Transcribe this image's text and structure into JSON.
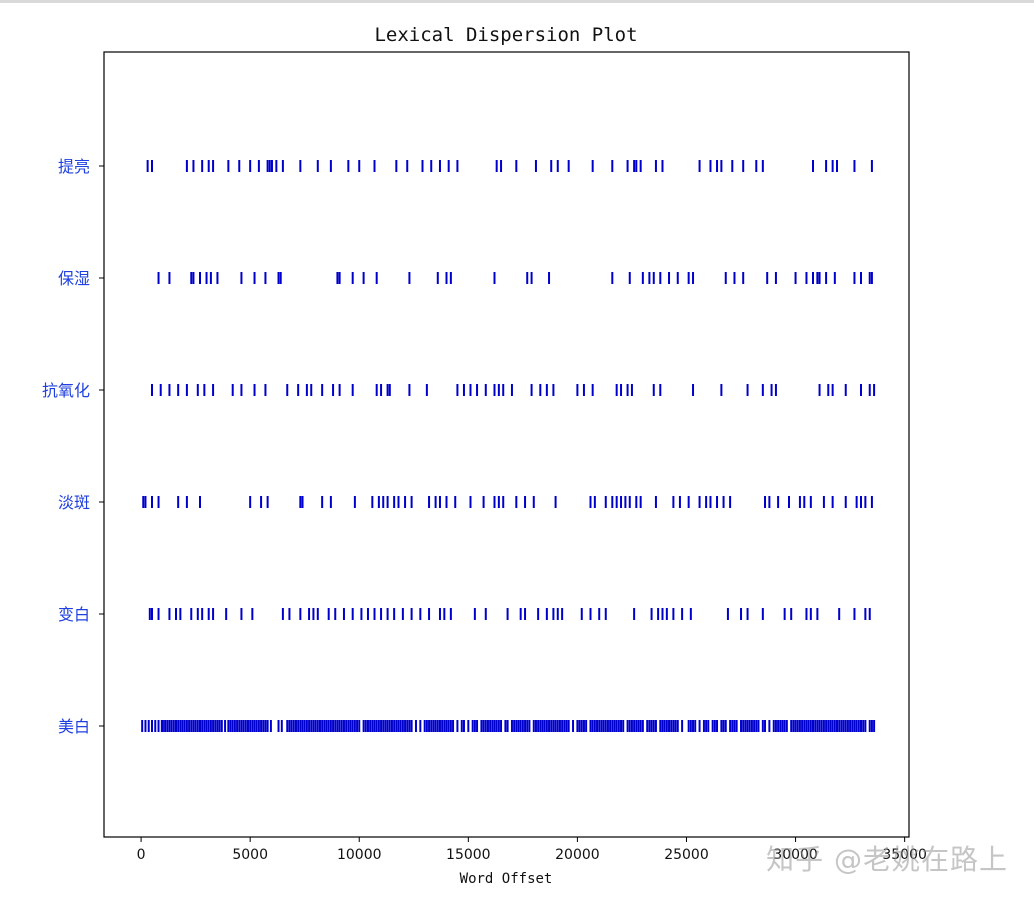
{
  "chart_data": {
    "type": "scatter",
    "title": "Lexical Dispersion Plot",
    "xlabel": "Word Offset",
    "ylabel": "",
    "xlim": [
      -1700,
      35200
    ],
    "xticks": [
      0,
      5000,
      10000,
      15000,
      20000,
      25000,
      30000,
      35000
    ],
    "xtick_labels": [
      "0",
      "5000",
      "10000",
      "15000",
      "20000",
      "25000",
      "30000",
      "35000"
    ],
    "marker": "|",
    "color": "#0000cc",
    "grid": false,
    "series": [
      {
        "name": "提亮",
        "x": [
          300,
          500,
          2100,
          2400,
          2800,
          3100,
          3300,
          4000,
          4500,
          5000,
          5400,
          5800,
          5900,
          6000,
          6200,
          6500,
          7300,
          8100,
          8700,
          9500,
          10000,
          10700,
          11700,
          12200,
          12900,
          13300,
          13700,
          14100,
          14500,
          16300,
          16500,
          17200,
          18100,
          18800,
          19100,
          19600,
          20700,
          21600,
          22300,
          22600,
          22700,
          22900,
          23600,
          23900,
          25600,
          26100,
          26400,
          26600,
          27100,
          27600,
          28200,
          28500,
          30800,
          31400,
          31700,
          31900,
          32700,
          33500
        ]
      },
      {
        "name": "保湿",
        "x": [
          800,
          1300,
          2300,
          2400,
          2700,
          3000,
          3200,
          3500,
          4600,
          5200,
          5700,
          6300,
          6400,
          9000,
          9100,
          9700,
          10200,
          10800,
          12300,
          13600,
          14000,
          14200,
          16200,
          17700,
          17900,
          18700,
          21600,
          22400,
          23000,
          23300,
          23500,
          23800,
          24200,
          24600,
          25100,
          25300,
          26800,
          27200,
          27600,
          28700,
          29100,
          30000,
          30500,
          30800,
          31000,
          31100,
          31400,
          31800,
          32700,
          33000,
          33400,
          33500
        ]
      },
      {
        "name": "抗氧化",
        "x": [
          500,
          900,
          1300,
          1700,
          2100,
          2600,
          2900,
          3300,
          4200,
          4600,
          5200,
          5700,
          6700,
          7200,
          7600,
          7800,
          8300,
          8800,
          9100,
          9700,
          10800,
          11000,
          11300,
          11400,
          12300,
          13100,
          14500,
          14800,
          15100,
          15400,
          15800,
          16200,
          16400,
          16600,
          17000,
          17900,
          18300,
          18600,
          18900,
          20000,
          20300,
          20700,
          21800,
          22000,
          22300,
          22500,
          23500,
          23800,
          25300,
          26600,
          27800,
          28500,
          28900,
          29100,
          31100,
          31500,
          31700,
          32300,
          33000,
          33400,
          33600
        ]
      },
      {
        "name": "淡斑",
        "x": [
          100,
          200,
          500,
          800,
          1700,
          2100,
          2700,
          5000,
          5500,
          5800,
          7300,
          7400,
          8300,
          8700,
          9800,
          10600,
          10900,
          11100,
          11300,
          11600,
          11800,
          12100,
          12400,
          13200,
          13500,
          13700,
          14000,
          14400,
          15100,
          15700,
          16200,
          16400,
          16600,
          17200,
          17600,
          18000,
          19000,
          20600,
          20800,
          21300,
          21600,
          21800,
          22000,
          22200,
          22400,
          22700,
          22900,
          23600,
          24400,
          24700,
          25100,
          25600,
          25900,
          26100,
          26400,
          26700,
          27000,
          28600,
          28800,
          29200,
          29700,
          30200,
          30400,
          30700,
          31300,
          31700,
          32300,
          32800,
          33000,
          33200,
          33500
        ]
      },
      {
        "name": "变白",
        "x": [
          400,
          500,
          800,
          1300,
          1600,
          1800,
          2300,
          2600,
          2800,
          3100,
          3300,
          3900,
          4600,
          5100,
          6500,
          6800,
          7300,
          7700,
          7900,
          8100,
          8600,
          8900,
          9300,
          9700,
          10100,
          10400,
          10700,
          11000,
          11300,
          11600,
          12000,
          12400,
          12800,
          13200,
          13700,
          13900,
          14200,
          15300,
          15800,
          16800,
          17400,
          17600,
          18200,
          18600,
          18900,
          19100,
          19300,
          20200,
          20600,
          21000,
          21300,
          22600,
          23400,
          23700,
          23900,
          24100,
          24400,
          24800,
          25200,
          26900,
          27500,
          27800,
          28500,
          29500,
          29800,
          30500,
          30700,
          31000,
          32000,
          32700,
          33200,
          33400
        ]
      },
      {
        "name": "美白",
        "x": [
          50,
          200,
          350,
          500,
          650,
          800,
          950,
          1000,
          1100,
          1200,
          1300,
          1400,
          1500,
          1600,
          1700,
          1800,
          1900,
          2000,
          2100,
          2200,
          2300,
          2400,
          2500,
          2600,
          2700,
          2800,
          2900,
          3000,
          3100,
          3200,
          3300,
          3400,
          3500,
          3600,
          3700,
          3850,
          4000,
          4100,
          4200,
          4300,
          4400,
          4500,
          4600,
          4700,
          4800,
          4900,
          5000,
          5100,
          5200,
          5300,
          5400,
          5500,
          5600,
          5700,
          5800,
          5950,
          6300,
          6450,
          6700,
          6800,
          6900,
          7000,
          7100,
          7200,
          7300,
          7400,
          7500,
          7600,
          7700,
          7800,
          7900,
          8000,
          8100,
          8200,
          8300,
          8400,
          8500,
          8600,
          8700,
          8800,
          8900,
          9000,
          9100,
          9200,
          9300,
          9400,
          9500,
          9600,
          9700,
          9800,
          9900,
          10000,
          10200,
          10300,
          10400,
          10500,
          10600,
          10700,
          10800,
          10900,
          11000,
          11100,
          11200,
          11300,
          11400,
          11500,
          11600,
          11700,
          11800,
          11900,
          12000,
          12100,
          12200,
          12300,
          12400,
          12600,
          12800,
          13000,
          13100,
          13200,
          13300,
          13400,
          13500,
          13600,
          13700,
          13800,
          13900,
          14000,
          14100,
          14200,
          14300,
          14500,
          14700,
          14800,
          15000,
          15200,
          15300,
          15400,
          15600,
          15700,
          15800,
          15900,
          16000,
          16100,
          16200,
          16300,
          16400,
          16500,
          16700,
          16800,
          17000,
          17100,
          17200,
          17300,
          17400,
          17500,
          17600,
          17700,
          17800,
          18000,
          18100,
          18200,
          18300,
          18400,
          18500,
          18600,
          18700,
          18800,
          18900,
          19000,
          19100,
          19200,
          19300,
          19400,
          19500,
          19600,
          19800,
          20000,
          20100,
          20200,
          20300,
          20400,
          20600,
          20700,
          20800,
          20900,
          21000,
          21100,
          21200,
          21300,
          21400,
          21500,
          21600,
          21700,
          21800,
          21900,
          22000,
          22100,
          22300,
          22400,
          22500,
          22600,
          22700,
          22800,
          22900,
          23000,
          23200,
          23300,
          23400,
          23500,
          23600,
          23800,
          23900,
          24000,
          24100,
          24200,
          24300,
          24400,
          24500,
          24600,
          24800,
          25100,
          25200,
          25300,
          25400,
          25600,
          25800,
          25900,
          26000,
          26200,
          26300,
          26400,
          26600,
          26700,
          26800,
          27000,
          27100,
          27200,
          27300,
          27500,
          27600,
          27700,
          27800,
          27900,
          28000,
          28100,
          28200,
          28300,
          28500,
          28600,
          28800,
          29000,
          29100,
          29200,
          29300,
          29400,
          29500,
          29600,
          29800,
          29900,
          30000,
          30100,
          30200,
          30300,
          30400,
          30500,
          30600,
          30700,
          30800,
          30900,
          31000,
          31100,
          31200,
          31300,
          31400,
          31500,
          31600,
          31700,
          31800,
          31900,
          32000,
          32100,
          32200,
          32300,
          32400,
          32500,
          32600,
          32700,
          32800,
          32900,
          33000,
          33100,
          33200,
          33400,
          33500,
          33600
        ]
      }
    ]
  },
  "watermark": "知乎 @老姚在路上"
}
